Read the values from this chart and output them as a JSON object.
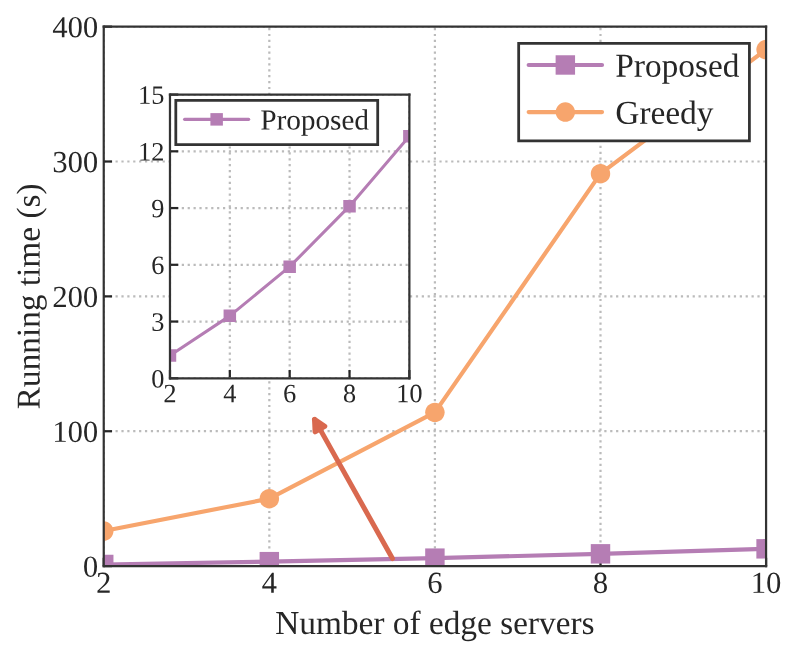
{
  "chart_data": [
    {
      "type": "line",
      "xlabel": "Number of edge servers",
      "ylabel": "Running time (s)",
      "x": [
        2,
        4,
        6,
        8,
        10
      ],
      "series": [
        {
          "name": "Proposed",
          "color": "#b57db4",
          "marker": "square",
          "values": [
            1.2,
            3.3,
            5.9,
            9.1,
            12.8
          ]
        },
        {
          "name": "Greedy",
          "color": "#f7a56d",
          "marker": "circle",
          "values": [
            26,
            50,
            114,
            291,
            383
          ]
        }
      ],
      "xlim": [
        2,
        10
      ],
      "xticks": [
        2,
        4,
        6,
        8,
        10
      ],
      "ylim": [
        0,
        400
      ],
      "yticks": [
        0,
        100,
        200,
        300,
        400
      ],
      "grid": true,
      "legend": "top right",
      "line_style": "solid"
    },
    {
      "type": "line",
      "x": [
        2,
        4,
        6,
        8,
        10
      ],
      "series": [
        {
          "name": "Proposed",
          "color": "#b57db4",
          "marker": "square",
          "values": [
            1.2,
            3.3,
            5.9,
            9.1,
            12.8
          ]
        }
      ],
      "xlim": [
        2,
        10
      ],
      "xticks": [
        2,
        4,
        6,
        8,
        10
      ],
      "ylim": [
        0,
        15
      ],
      "yticks": [
        0,
        3,
        6,
        9,
        12,
        15
      ],
      "grid": true,
      "legend": "top left",
      "line_style": "solid"
    }
  ]
}
